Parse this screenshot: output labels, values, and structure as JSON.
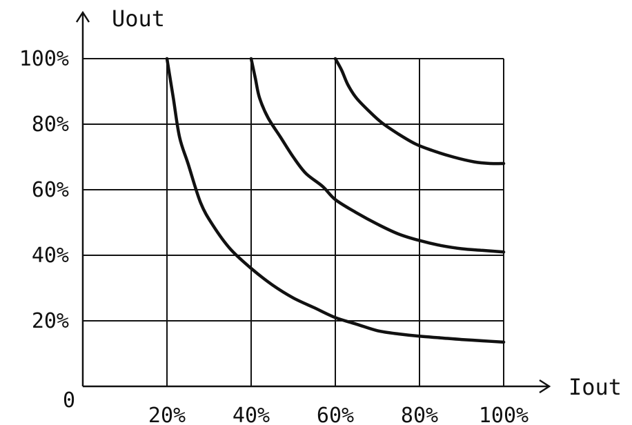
{
  "chart_data": {
    "type": "line",
    "title": "",
    "xlabel": "Iout",
    "ylabel": "Uout",
    "origin_label": "0",
    "xlim": [
      0,
      100
    ],
    "ylim": [
      0,
      100
    ],
    "x_ticks": [
      {
        "value": 20,
        "label": "20%"
      },
      {
        "value": 40,
        "label": "40%"
      },
      {
        "value": 60,
        "label": "60%"
      },
      {
        "value": 80,
        "label": "80%"
      },
      {
        "value": 100,
        "label": "100%"
      }
    ],
    "y_ticks": [
      {
        "value": 20,
        "label": "20%"
      },
      {
        "value": 40,
        "label": "40%"
      },
      {
        "value": 60,
        "label": "60%"
      },
      {
        "value": 80,
        "label": "80%"
      },
      {
        "value": 100,
        "label": "100%"
      }
    ],
    "grid": true,
    "series": [
      {
        "x": [
          20,
          21.5,
          23,
          25,
          28,
          31,
          35,
          40,
          45,
          50,
          55,
          60,
          65,
          70,
          75,
          80,
          85,
          90,
          95,
          100
        ],
        "y": [
          100,
          88,
          76,
          68,
          56,
          49,
          42,
          36,
          31,
          27,
          24,
          21,
          19,
          17,
          16,
          15.3,
          14.8,
          14.3,
          13.9,
          13.5
        ]
      },
      {
        "x": [
          40,
          41,
          42,
          44,
          47,
          50,
          53,
          57,
          60,
          65,
          70,
          75,
          80,
          85,
          90,
          95,
          100
        ],
        "y": [
          100,
          94,
          88,
          82,
          76,
          70,
          65,
          61,
          57,
          53,
          49.5,
          46.5,
          44.5,
          43,
          42,
          41.5,
          41
        ]
      },
      {
        "x": [
          60,
          61.5,
          63,
          65,
          68,
          71,
          75,
          79,
          83,
          88,
          93,
          97,
          100
        ],
        "y": [
          100,
          96.5,
          92,
          88,
          84,
          80.5,
          77,
          74,
          72,
          70,
          68.5,
          68,
          68
        ]
      }
    ]
  }
}
